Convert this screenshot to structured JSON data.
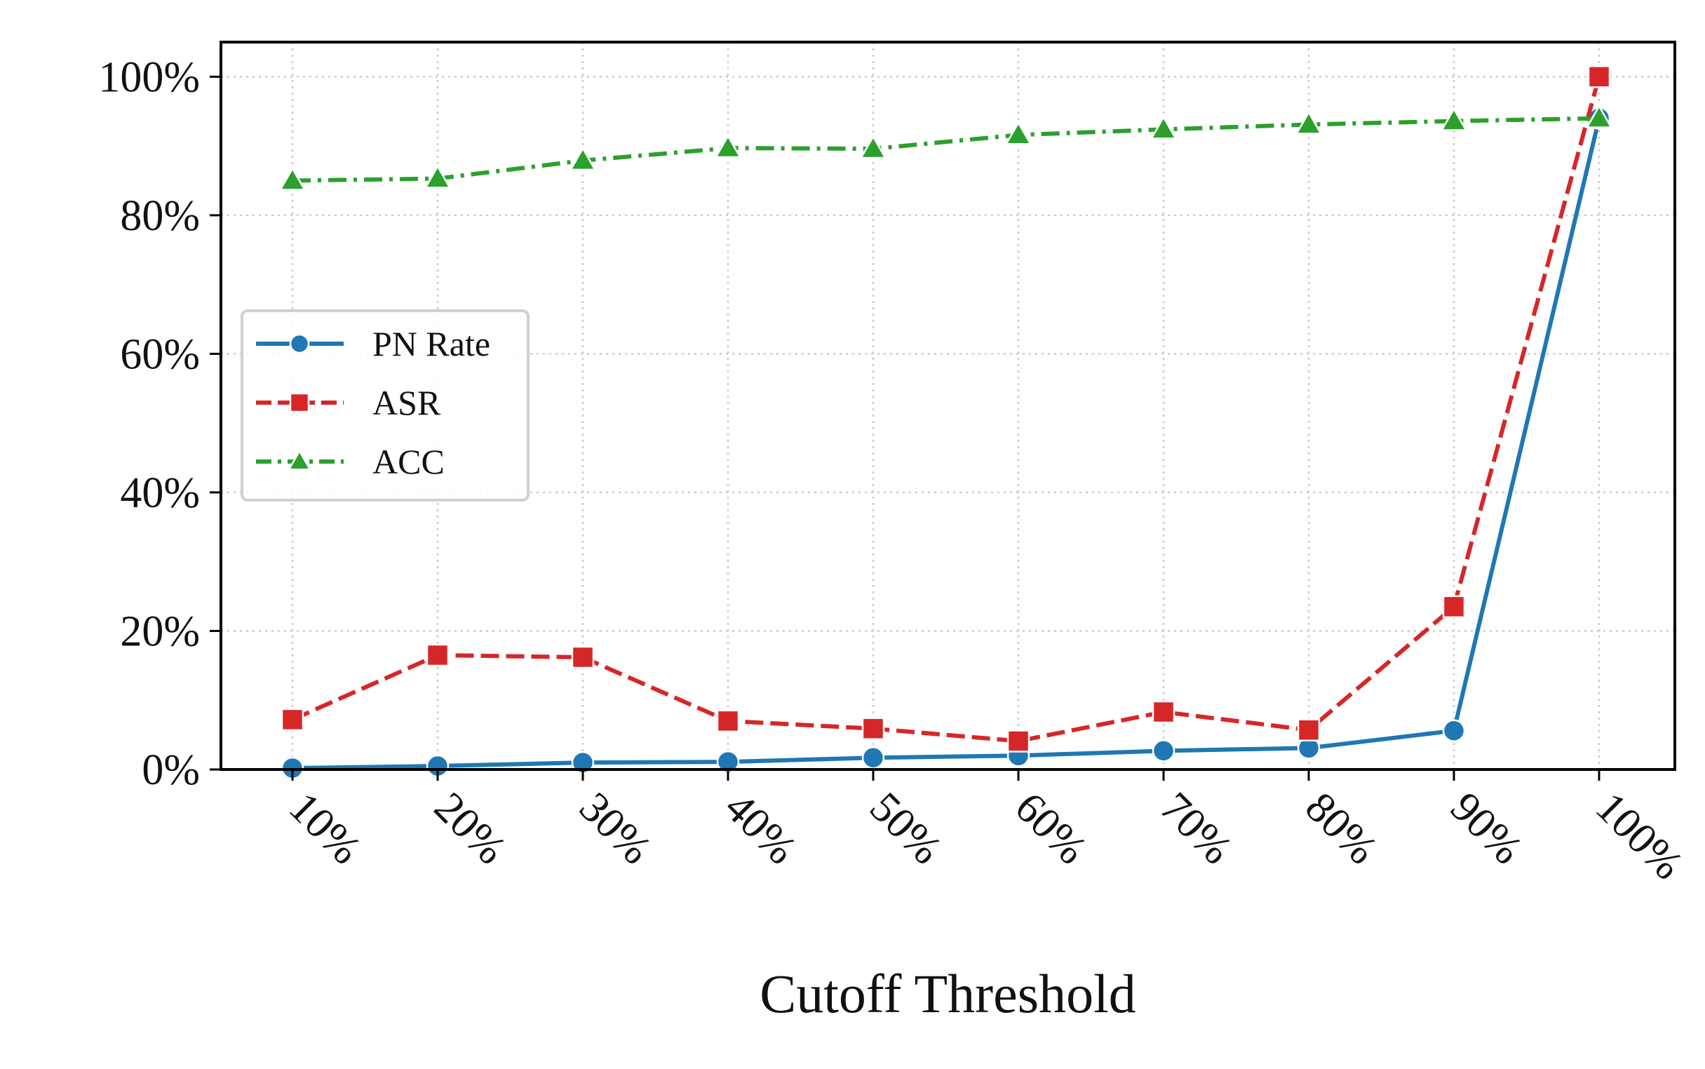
{
  "chart_data": {
    "type": "line",
    "title": "",
    "xlabel": "Cutoff Threshold",
    "ylabel": "",
    "categories": [
      "10%",
      "20%",
      "30%",
      "40%",
      "50%",
      "60%",
      "70%",
      "80%",
      "90%",
      "100%"
    ],
    "yticks": [
      "0%",
      "20%",
      "40%",
      "60%",
      "80%",
      "100%"
    ],
    "ylim": [
      0,
      105
    ],
    "grid": true,
    "legend_position": "center-left",
    "series": [
      {
        "name": "PN Rate",
        "values": [
          0.2,
          0.5,
          1.0,
          1.1,
          1.7,
          2.0,
          2.7,
          3.1,
          5.6,
          94.0
        ],
        "color": "#1f77b4",
        "marker": "circle",
        "linestyle": "solid"
      },
      {
        "name": "ASR",
        "values": [
          7.2,
          16.5,
          16.2,
          7.0,
          5.9,
          4.1,
          8.3,
          5.7,
          23.5,
          100.0
        ],
        "color": "#d62728",
        "marker": "square",
        "linestyle": "dashed"
      },
      {
        "name": "ACC",
        "values": [
          85.0,
          85.3,
          87.9,
          89.7,
          89.6,
          91.6,
          92.4,
          93.1,
          93.6,
          94.0
        ],
        "color": "#2ca02c",
        "marker": "triangle",
        "linestyle": "dashdot"
      }
    ]
  }
}
